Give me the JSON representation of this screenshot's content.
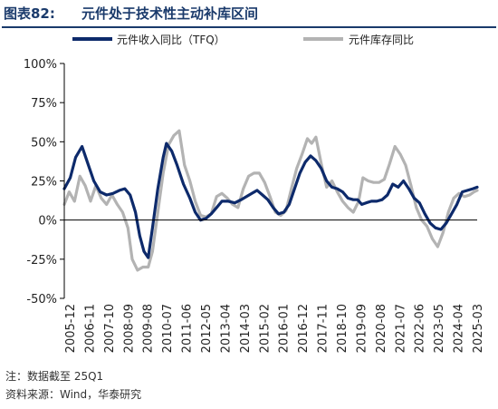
{
  "header": {
    "figure_label": "图表82:",
    "title": "元件处于技术性主动补库区间"
  },
  "notes": {
    "note": "注：数据截至 25Q1",
    "source": "资料来源：Wind，华泰研究"
  },
  "chart_data": {
    "type": "line",
    "ylim": [
      -50,
      100
    ],
    "y_ticks": [
      "100%",
      "75%",
      "50%",
      "25%",
      "0%",
      "-25%",
      "-50%"
    ],
    "x_tick_labels": [
      "2005-12",
      "2006-11",
      "2007-10",
      "2008-09",
      "2009-08",
      "2010-07",
      "2011-06",
      "2012-05",
      "2013-04",
      "2014-03",
      "2015-02",
      "2016-01",
      "2016-12",
      "2017-11",
      "2018-10",
      "2019-09",
      "2020-08",
      "2021-07",
      "2022-06",
      "2023-05",
      "2024-04",
      "2025-03"
    ],
    "legend_position": "top",
    "series": [
      {
        "name": "元件收入同比（TFQ）",
        "color": "#0d2a6b",
        "points": [
          [
            2005.92,
            20
          ],
          [
            2006.2,
            27
          ],
          [
            2006.45,
            40
          ],
          [
            2006.75,
            47
          ],
          [
            2007.0,
            37
          ],
          [
            2007.3,
            25
          ],
          [
            2007.6,
            18
          ],
          [
            2007.9,
            16
          ],
          [
            2008.2,
            17
          ],
          [
            2008.5,
            19
          ],
          [
            2008.75,
            20
          ],
          [
            2009.0,
            16
          ],
          [
            2009.25,
            5
          ],
          [
            2009.45,
            -10
          ],
          [
            2009.65,
            -20
          ],
          [
            2009.85,
            -24
          ],
          [
            2010.05,
            -5
          ],
          [
            2010.3,
            20
          ],
          [
            2010.55,
            40
          ],
          [
            2010.7,
            49
          ],
          [
            2010.95,
            44
          ],
          [
            2011.2,
            35
          ],
          [
            2011.5,
            23
          ],
          [
            2011.8,
            14
          ],
          [
            2012.05,
            5
          ],
          [
            2012.3,
            0
          ],
          [
            2012.55,
            1
          ],
          [
            2012.8,
            4
          ],
          [
            2013.05,
            8
          ],
          [
            2013.3,
            12
          ],
          [
            2013.6,
            12
          ],
          [
            2013.9,
            11
          ],
          [
            2014.2,
            13
          ],
          [
            2014.45,
            15
          ],
          [
            2014.7,
            17
          ],
          [
            2014.95,
            19
          ],
          [
            2015.2,
            16
          ],
          [
            2015.45,
            13
          ],
          [
            2015.7,
            8
          ],
          [
            2015.95,
            4
          ],
          [
            2016.2,
            5
          ],
          [
            2016.45,
            10
          ],
          [
            2016.7,
            20
          ],
          [
            2016.95,
            30
          ],
          [
            2017.2,
            37
          ],
          [
            2017.45,
            41
          ],
          [
            2017.7,
            38
          ],
          [
            2017.95,
            33
          ],
          [
            2018.2,
            25
          ],
          [
            2018.45,
            21
          ],
          [
            2018.7,
            20
          ],
          [
            2018.95,
            18
          ],
          [
            2019.2,
            14
          ],
          [
            2019.45,
            13
          ],
          [
            2019.65,
            13
          ],
          [
            2019.85,
            10
          ],
          [
            2020.05,
            11
          ],
          [
            2020.3,
            12
          ],
          [
            2020.55,
            12
          ],
          [
            2020.8,
            13
          ],
          [
            2021.05,
            16
          ],
          [
            2021.3,
            23
          ],
          [
            2021.55,
            21
          ],
          [
            2021.8,
            25
          ],
          [
            2022.05,
            20
          ],
          [
            2022.3,
            14
          ],
          [
            2022.55,
            11
          ],
          [
            2022.8,
            4
          ],
          [
            2023.05,
            -2
          ],
          [
            2023.3,
            -5
          ],
          [
            2023.55,
            -6
          ],
          [
            2023.8,
            -2
          ],
          [
            2024.05,
            4
          ],
          [
            2024.3,
            10
          ],
          [
            2024.55,
            18
          ],
          [
            2024.8,
            19
          ],
          [
            2025.05,
            20
          ],
          [
            2025.25,
            21
          ]
        ]
      },
      {
        "name": "元件库存同比",
        "color": "#b3b3b3",
        "points": [
          [
            2005.92,
            10
          ],
          [
            2006.15,
            18
          ],
          [
            2006.4,
            12
          ],
          [
            2006.65,
            28
          ],
          [
            2006.9,
            22
          ],
          [
            2007.15,
            12
          ],
          [
            2007.4,
            22
          ],
          [
            2007.65,
            14
          ],
          [
            2007.9,
            10
          ],
          [
            2008.15,
            16
          ],
          [
            2008.4,
            10
          ],
          [
            2008.65,
            5
          ],
          [
            2008.9,
            -5
          ],
          [
            2009.1,
            -25
          ],
          [
            2009.35,
            -32
          ],
          [
            2009.6,
            -30
          ],
          [
            2009.85,
            -30
          ],
          [
            2010.05,
            -20
          ],
          [
            2010.3,
            5
          ],
          [
            2010.55,
            30
          ],
          [
            2010.8,
            48
          ],
          [
            2011.05,
            54
          ],
          [
            2011.3,
            57
          ],
          [
            2011.55,
            35
          ],
          [
            2011.8,
            25
          ],
          [
            2012.05,
            12
          ],
          [
            2012.3,
            3
          ],
          [
            2012.55,
            2
          ],
          [
            2012.8,
            4
          ],
          [
            2013.05,
            15
          ],
          [
            2013.3,
            17
          ],
          [
            2013.55,
            14
          ],
          [
            2013.8,
            10
          ],
          [
            2014.05,
            8
          ],
          [
            2014.3,
            20
          ],
          [
            2014.55,
            28
          ],
          [
            2014.8,
            30
          ],
          [
            2015.05,
            30
          ],
          [
            2015.3,
            24
          ],
          [
            2015.55,
            15
          ],
          [
            2015.8,
            5
          ],
          [
            2016.05,
            3
          ],
          [
            2016.3,
            6
          ],
          [
            2016.55,
            20
          ],
          [
            2016.8,
            33
          ],
          [
            2017.05,
            42
          ],
          [
            2017.3,
            52
          ],
          [
            2017.5,
            49
          ],
          [
            2017.7,
            53
          ],
          [
            2017.95,
            36
          ],
          [
            2018.2,
            21
          ],
          [
            2018.45,
            25
          ],
          [
            2018.7,
            18
          ],
          [
            2018.95,
            12
          ],
          [
            2019.2,
            8
          ],
          [
            2019.45,
            5
          ],
          [
            2019.7,
            12
          ],
          [
            2019.9,
            27
          ],
          [
            2020.15,
            25
          ],
          [
            2020.4,
            24
          ],
          [
            2020.65,
            24
          ],
          [
            2020.9,
            26
          ],
          [
            2021.15,
            36
          ],
          [
            2021.4,
            47
          ],
          [
            2021.65,
            42
          ],
          [
            2021.9,
            35
          ],
          [
            2022.15,
            22
          ],
          [
            2022.4,
            8
          ],
          [
            2022.65,
            0
          ],
          [
            2022.9,
            -4
          ],
          [
            2023.15,
            -12
          ],
          [
            2023.4,
            -17
          ],
          [
            2023.65,
            -8
          ],
          [
            2023.9,
            5
          ],
          [
            2024.15,
            14
          ],
          [
            2024.4,
            17
          ],
          [
            2024.65,
            15
          ],
          [
            2024.9,
            16
          ],
          [
            2025.1,
            18
          ],
          [
            2025.25,
            19
          ]
        ]
      }
    ]
  }
}
